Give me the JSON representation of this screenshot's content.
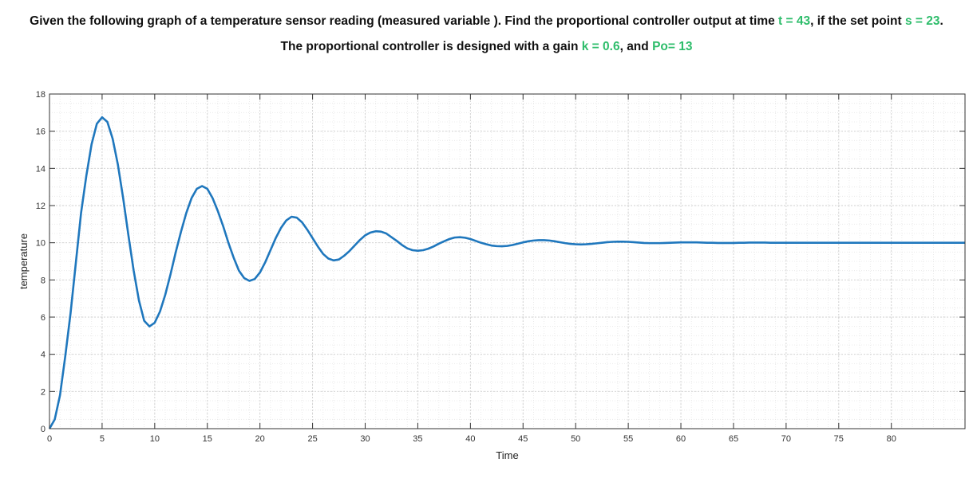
{
  "question": {
    "line1_a": "Given the following graph of a temperature sensor reading (measured variable ). Find the proportional controller output at time ",
    "line1_t": "t = 43",
    "line1_b": ", if the set point ",
    "line1_s": "s = 23",
    "line1_c": ".",
    "line2_a": "The proportional controller is designed with a gain ",
    "line2_k": "k = 0.6",
    "line2_b": ", and ",
    "line2_po": "Po= 13",
    "highlight_color": "#2ebd6b"
  },
  "chart_data": {
    "type": "line",
    "title": "",
    "xlabel": "Time",
    "ylabel": "temperature",
    "xlim": [
      0,
      87
    ],
    "ylim": [
      0,
      18
    ],
    "xticks": [
      0,
      5,
      10,
      15,
      20,
      25,
      30,
      35,
      40,
      45,
      50,
      55,
      60,
      65,
      70,
      75,
      80
    ],
    "yticks": [
      0,
      2,
      4,
      6,
      8,
      10,
      12,
      14,
      16,
      18
    ],
    "grid": true,
    "grid_style": "dotted-minor",
    "line_color": "#1f77bd",
    "series": [
      {
        "x": [
          0,
          0.5,
          1,
          1.5,
          2,
          2.5,
          3,
          3.5,
          4,
          4.5,
          5,
          5.5,
          6,
          6.5,
          7,
          7.5,
          8,
          8.5,
          9,
          9.5,
          10,
          10.5,
          11,
          11.5,
          12,
          12.5,
          13,
          13.5,
          14,
          14.5,
          15,
          15.5,
          16,
          16.5,
          17,
          17.5,
          18,
          18.5,
          19,
          19.5,
          20,
          20.5,
          21,
          21.5,
          22,
          22.5,
          23,
          23.5,
          24,
          24.5,
          25,
          25.5,
          26,
          26.5,
          27,
          27.5,
          28,
          28.5,
          29,
          29.5,
          30,
          30.5,
          31,
          31.5,
          32,
          32.5,
          33,
          33.5,
          34,
          34.5,
          35,
          35.5,
          36,
          36.5,
          37,
          37.5,
          38,
          38.5,
          39,
          39.5,
          40,
          40.5,
          41,
          41.5,
          42,
          42.5,
          43,
          43.5,
          44,
          44.5,
          45,
          45.5,
          46,
          46.5,
          47,
          47.5,
          48,
          48.5,
          49,
          49.5,
          50,
          50.5,
          51,
          51.5,
          52,
          52.5,
          53,
          53.5,
          54,
          54.5,
          55,
          55.5,
          56,
          56.5,
          57,
          57.5,
          58,
          58.5,
          59,
          59.5,
          60,
          60.5,
          61,
          61.5,
          62,
          62.5,
          63,
          63.5,
          64,
          64.5,
          65,
          65.5,
          66,
          66.5,
          67,
          67.5,
          68,
          68.5,
          69,
          69.5,
          70,
          70.5,
          71,
          71.5,
          72,
          72.5,
          73,
          73.5,
          74,
          74.5,
          75,
          75.5,
          76,
          76.5,
          77,
          77.5,
          78,
          78.5,
          79,
          79.5,
          80,
          80.5,
          81,
          81.5,
          82,
          82.5,
          83,
          83.5,
          84,
          84.5,
          85,
          85.5,
          86,
          86.5,
          87
        ],
        "values": [
          0,
          0.5,
          1.8,
          3.9,
          6.2,
          8.9,
          11.6,
          13.6,
          15.3,
          16.4,
          16.75,
          16.5,
          15.6,
          14.2,
          12.4,
          10.4,
          8.5,
          6.9,
          5.8,
          5.5,
          5.7,
          6.3,
          7.2,
          8.3,
          9.5,
          10.6,
          11.6,
          12.4,
          12.9,
          13.05,
          12.9,
          12.4,
          11.7,
          10.9,
          10.0,
          9.2,
          8.5,
          8.1,
          7.95,
          8.05,
          8.4,
          8.95,
          9.6,
          10.25,
          10.8,
          11.2,
          11.4,
          11.35,
          11.1,
          10.7,
          10.25,
          9.8,
          9.4,
          9.15,
          9.05,
          9.1,
          9.3,
          9.55,
          9.85,
          10.15,
          10.4,
          10.55,
          10.62,
          10.6,
          10.5,
          10.3,
          10.1,
          9.88,
          9.7,
          9.6,
          9.57,
          9.6,
          9.68,
          9.8,
          9.95,
          10.08,
          10.2,
          10.28,
          10.3,
          10.27,
          10.2,
          10.1,
          10.0,
          9.92,
          9.85,
          9.82,
          9.81,
          9.83,
          9.88,
          9.95,
          10.02,
          10.08,
          10.12,
          10.14,
          10.14,
          10.12,
          10.08,
          10.03,
          9.98,
          9.94,
          9.92,
          9.91,
          9.92,
          9.94,
          9.97,
          10.0,
          10.03,
          10.05,
          10.06,
          10.06,
          10.05,
          10.03,
          10.01,
          9.99,
          9.98,
          9.98,
          9.98,
          9.99,
          10.0,
          10.01,
          10.02,
          10.02,
          10.02,
          10.02,
          10.01,
          10.0,
          10.0,
          9.99,
          9.99,
          9.99,
          9.99,
          10.0,
          10.0,
          10.01,
          10.01,
          10.01,
          10.01,
          10.0,
          10.0,
          10.0,
          10.0,
          10.0,
          10.0,
          10.0,
          10.0,
          10.0,
          10.0,
          10.0,
          10.0,
          10.0,
          10.0,
          10.0,
          10.0,
          10.0,
          10.0,
          10.0,
          10.0,
          10.0,
          10.0,
          10.0,
          10.0,
          10.0,
          10.0,
          10.0,
          10.0,
          10.0,
          10.0,
          10.0,
          10.0,
          10.0,
          10.0,
          10.0,
          10.0,
          10.0,
          10.0
        ]
      }
    ]
  }
}
